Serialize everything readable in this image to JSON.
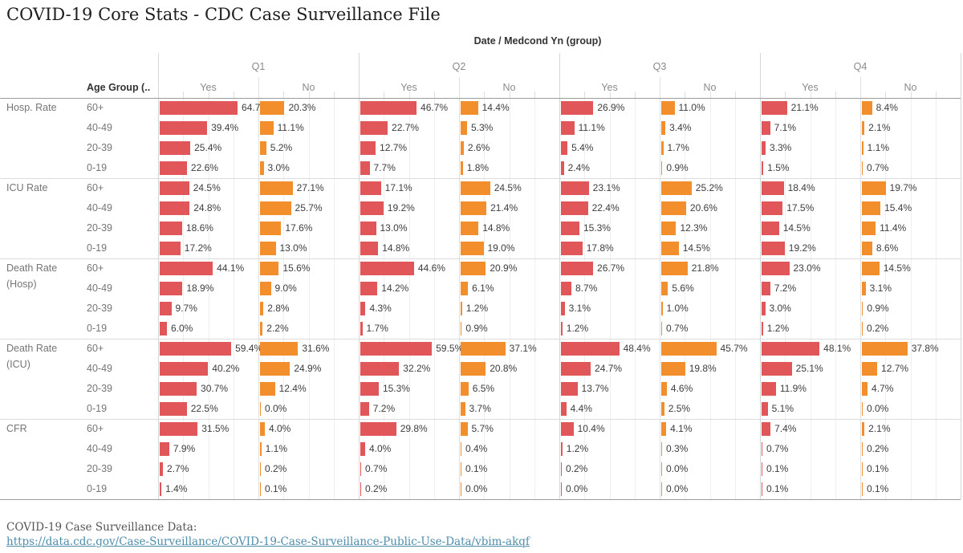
{
  "title": "COVID-19 Core Stats - CDC Case Surveillance File",
  "header": {
    "field_label": "Date / Medcond Yn (group)",
    "row_field_label": "Age Group (.."
  },
  "footer": {
    "caption": "COVID-19 Case Surveillance Data:",
    "link": "https://data.cdc.gov/Case-Surveillance/COVID-19-Case-Surveillance-Public-Use-Data/vbim-akqf"
  },
  "colors": {
    "yes_bar": "#e15759",
    "no_bar": "#f28e2b",
    "link": "#4e8cab",
    "value_label": "#3d3d3d",
    "header_gray": "#8a8a8a",
    "row_label_gray": "#757575"
  },
  "chart_data": {
    "type": "bar",
    "title": "COVID-19 Core Stats - CDC Case Surveillance File",
    "column_field": "Date / Medcond Yn (group)",
    "row_field": "Age Group (..",
    "quarters": [
      "Q1",
      "Q2",
      "Q3",
      "Q4"
    ],
    "conditions": [
      "Yes",
      "No"
    ],
    "column_order": [
      "Q1 Yes",
      "Q1 No",
      "Q2 Yes",
      "Q2 No",
      "Q3 Yes",
      "Q3 No",
      "Q4 Yes",
      "Q4 No"
    ],
    "age_groups": [
      "60+",
      "40-49",
      "20-39",
      "0-19"
    ],
    "value_axis": {
      "min": 0,
      "max": 80,
      "unit": "%",
      "axis_hidden": true,
      "gridline_step": 20,
      "grid": true
    },
    "legend_position": "none",
    "label_format": "one_decimal_percent",
    "metrics": [
      {
        "name": "Hosp. Rate",
        "label_lines": [
          "Hosp. Rate"
        ],
        "values": [
          [
            64.7,
            20.3,
            46.7,
            14.4,
            26.9,
            11.0,
            21.1,
            8.4
          ],
          [
            39.4,
            11.1,
            22.7,
            5.3,
            11.1,
            3.4,
            7.1,
            2.1
          ],
          [
            25.4,
            5.2,
            12.7,
            2.6,
            5.4,
            1.7,
            3.3,
            1.1
          ],
          [
            22.6,
            3.0,
            7.7,
            1.8,
            2.4,
            0.9,
            1.5,
            0.7
          ]
        ]
      },
      {
        "name": "ICU Rate",
        "label_lines": [
          "ICU Rate"
        ],
        "values": [
          [
            24.5,
            27.1,
            17.1,
            24.5,
            23.1,
            25.2,
            18.4,
            19.7
          ],
          [
            24.8,
            25.7,
            19.2,
            21.4,
            22.4,
            20.6,
            17.5,
            15.4
          ],
          [
            18.6,
            17.6,
            13.0,
            14.8,
            15.3,
            12.3,
            14.5,
            11.4
          ],
          [
            17.2,
            13.0,
            14.8,
            19.0,
            17.8,
            14.5,
            19.2,
            8.6
          ]
        ]
      },
      {
        "name": "Death Rate (Hosp)",
        "label_lines": [
          "Death Rate",
          "(Hosp)"
        ],
        "values": [
          [
            44.1,
            15.6,
            44.6,
            20.9,
            26.7,
            21.8,
            23.0,
            14.5
          ],
          [
            18.9,
            9.0,
            14.2,
            6.1,
            8.7,
            5.6,
            7.2,
            3.1
          ],
          [
            9.7,
            2.8,
            4.3,
            1.2,
            3.1,
            1.0,
            3.0,
            0.9
          ],
          [
            6.0,
            2.2,
            1.7,
            0.9,
            1.2,
            0.7,
            1.2,
            0.2
          ]
        ]
      },
      {
        "name": "Death Rate (ICU)",
        "label_lines": [
          "Death Rate",
          "(ICU)"
        ],
        "values": [
          [
            59.4,
            31.6,
            59.5,
            37.1,
            48.4,
            45.7,
            48.1,
            37.8
          ],
          [
            40.2,
            24.9,
            32.2,
            20.8,
            24.7,
            19.8,
            25.1,
            12.7
          ],
          [
            30.7,
            12.4,
            15.3,
            6.5,
            13.7,
            4.6,
            11.9,
            4.7
          ],
          [
            22.5,
            0.0,
            7.2,
            3.7,
            4.4,
            2.5,
            5.1,
            0.0
          ]
        ]
      },
      {
        "name": "CFR",
        "label_lines": [
          "CFR"
        ],
        "values": [
          [
            31.5,
            4.0,
            29.8,
            5.7,
            10.4,
            4.1,
            7.4,
            2.1
          ],
          [
            7.9,
            1.1,
            4.0,
            0.4,
            1.2,
            0.3,
            0.7,
            0.2
          ],
          [
            2.7,
            0.2,
            0.7,
            0.1,
            0.2,
            0.0,
            0.1,
            0.1
          ],
          [
            1.4,
            0.1,
            0.2,
            0.0,
            0.0,
            0.0,
            0.1,
            0.1
          ]
        ]
      }
    ]
  }
}
